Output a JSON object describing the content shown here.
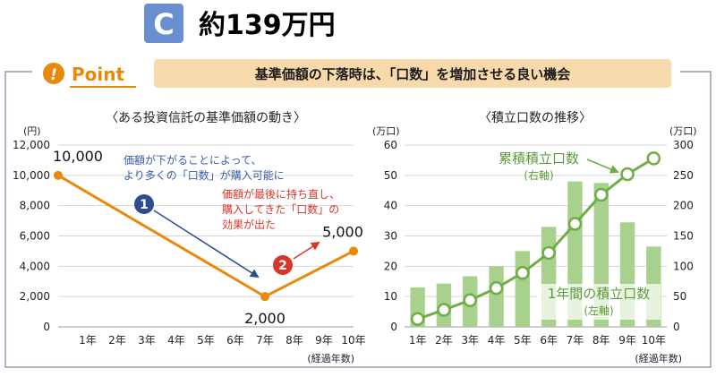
{
  "header": {
    "option_badge": "C",
    "result_text": "約139万円"
  },
  "point": {
    "label": "Point",
    "banner_text": "基準価額の下落時は、「口数」を増加させる良い機会"
  },
  "colors": {
    "badge_blue": "#6a8fd0",
    "orange": "#e8890c",
    "banner_bg": "#f7d9ab",
    "green_bar": "#a9d18e",
    "green_line": "#70ad47",
    "blue_arrow": "#2e4d8f",
    "red_arrow": "#d9362b",
    "blue_text": "#3b5ca8",
    "red_text": "#d9362b",
    "green_text": "#5a9a3a"
  },
  "chart_data": [
    {
      "type": "line",
      "title": "〈ある投資信託の基準価額の動き〉",
      "y_unit": "(円)",
      "x_unit": "(経過年数)",
      "ylim": [
        0,
        12000
      ],
      "y_ticks": [
        "0",
        "2,000",
        "4,000",
        "6,000",
        "8,000",
        "10,000",
        "12,000"
      ],
      "categories": [
        "1年",
        "2年",
        "3年",
        "4年",
        "5年",
        "6年",
        "7年",
        "8年",
        "9年",
        "10年"
      ],
      "points": [
        {
          "x": 0,
          "y": 10000,
          "label": "10,000"
        },
        {
          "x": 7,
          "y": 2000,
          "label": "2,000"
        },
        {
          "x": 10,
          "y": 5000,
          "label": "5,000"
        }
      ],
      "annotations": [
        {
          "number": "1",
          "lines": [
            "価額が下がることによって、",
            "より多くの「口数」が購入可能に"
          ]
        },
        {
          "number": "2",
          "lines": [
            "価額が最後に持ち直し、",
            "購入してきた「口数」の",
            "効果が出た"
          ]
        }
      ],
      "grid": true
    },
    {
      "type": "bar+line",
      "title": "〈積立口数の推移〉",
      "y_left_unit": "(万口)",
      "y_right_unit": "(万口)",
      "x_unit": "(経過年数)",
      "ylim_left": [
        0,
        60
      ],
      "ylim_right": [
        0,
        300
      ],
      "y_left_ticks": [
        "0",
        "10",
        "20",
        "30",
        "40",
        "50",
        "60"
      ],
      "y_right_ticks": [
        "0",
        "50",
        "100",
        "150",
        "200",
        "250",
        "300"
      ],
      "categories": [
        "1年",
        "2年",
        "3年",
        "4年",
        "5年",
        "6年",
        "7年",
        "8年",
        "9年",
        "10年"
      ],
      "series": [
        {
          "name": "1年間の積立口数",
          "axis_note": "(左軸)",
          "kind": "bar",
          "axis": "left",
          "values": [
            13,
            14.3,
            16.7,
            20,
            25,
            33,
            48,
            47.5,
            34.5,
            26.5
          ]
        },
        {
          "name": "累積積立口数",
          "axis_note": "(右軸)",
          "kind": "line",
          "axis": "right",
          "values": [
            13,
            28,
            44,
            64,
            89,
            122,
            170,
            218,
            252,
            278
          ]
        }
      ],
      "grid": true
    }
  ]
}
